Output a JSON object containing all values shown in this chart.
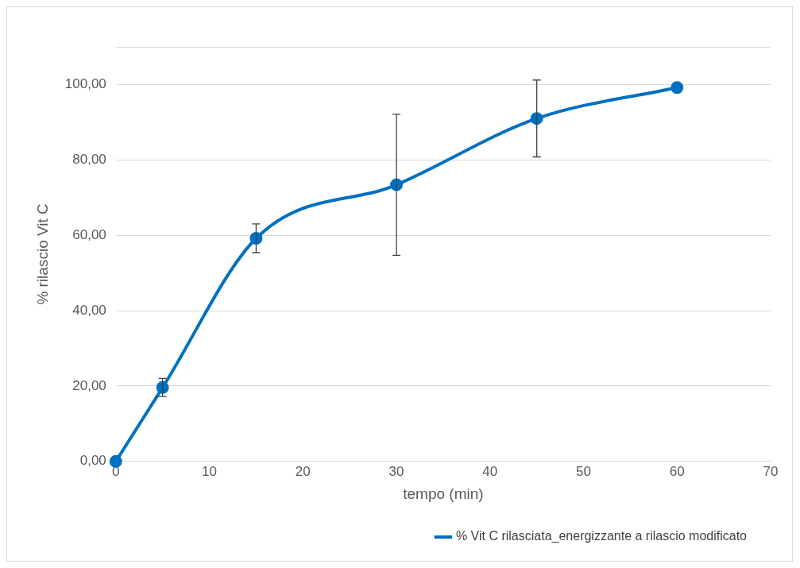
{
  "chart_data": {
    "type": "line",
    "xlabel": "tempo (min)",
    "ylabel": "% rilascio Vit C",
    "x": [
      0,
      5,
      15,
      30,
      45,
      60
    ],
    "series": [
      {
        "name": "% Vit C rilasciata_energizzante a rilascio modificato",
        "color": "#0070c0",
        "values": [
          0,
          19.6,
          59.2,
          73.4,
          91.0,
          99.2
        ],
        "errors": [
          null,
          2.4,
          3.8,
          18.7,
          10.2,
          null
        ]
      }
    ],
    "xlim": [
      0,
      70
    ],
    "xticks": [
      0,
      10,
      20,
      30,
      40,
      50,
      60,
      70
    ],
    "ylim": [
      0,
      110
    ],
    "yticks": [
      {
        "value": 0,
        "label": "0,00"
      },
      {
        "value": 20,
        "label": "20,00"
      },
      {
        "value": 40,
        "label": "40,00"
      },
      {
        "value": 60,
        "label": "60,00"
      },
      {
        "value": 80,
        "label": "80,00"
      },
      {
        "value": 100,
        "label": "100,00"
      },
      {
        "value": 110,
        "label": null
      }
    ],
    "grid": "y",
    "legend": "bottom right",
    "marker": "circle",
    "line_style": "solid"
  }
}
